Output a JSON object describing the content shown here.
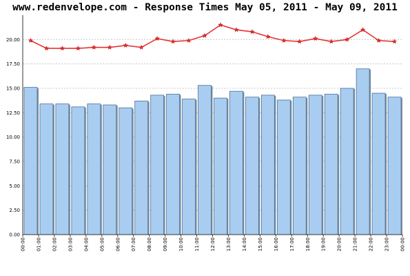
{
  "chart_data": {
    "type": "bar",
    "title": "www.redenvelope.com - Response Times May 05, 2011 - May 09, 2011",
    "xlabel": "",
    "ylabel": "",
    "ylim": [
      0,
      22.5
    ],
    "y_ticks": [
      "0.00",
      "2.50",
      "5.00",
      "7.50",
      "10.00",
      "12.50",
      "15.00",
      "17.50",
      "20.00"
    ],
    "categories": [
      "00:00",
      "01:00",
      "02:00",
      "03:00",
      "04:00",
      "05:00",
      "06:00",
      "07:00",
      "08:00",
      "09:00",
      "10:00",
      "11:00",
      "12:00",
      "13:00",
      "14:00",
      "15:00",
      "16:00",
      "17:00",
      "18:00",
      "19:00",
      "20:00",
      "21:00",
      "22:00",
      "23:00"
    ],
    "x_tick_labels": [
      "00:00",
      "01:00",
      "02:00",
      "03:00",
      "04:00",
      "05:00",
      "06:00",
      "07:00",
      "08:00",
      "09:00",
      "10:00",
      "11:00",
      "12:00",
      "13:00",
      "14:00",
      "15:00",
      "16:00",
      "17:00",
      "18:00",
      "19:00",
      "20:00",
      "21:00",
      "22:00",
      "23:00",
      "00:00"
    ],
    "grid": true,
    "series": [
      {
        "type": "bar",
        "color": "#a8cdf0",
        "values": [
          15.1,
          13.4,
          13.4,
          13.1,
          13.4,
          13.3,
          13.0,
          13.7,
          14.3,
          14.4,
          13.9,
          15.3,
          14.0,
          14.7,
          14.1,
          14.3,
          13.8,
          14.1,
          14.3,
          14.4,
          15.0,
          17.0,
          14.5,
          14.1
        ]
      },
      {
        "type": "line",
        "color": "#e83232",
        "values": [
          19.9,
          19.1,
          19.1,
          19.1,
          19.2,
          19.2,
          19.4,
          19.2,
          20.1,
          19.8,
          19.9,
          20.4,
          21.5,
          21.0,
          20.8,
          20.3,
          19.9,
          19.8,
          20.1,
          19.8,
          20.0,
          21.0,
          19.9,
          19.8
        ]
      }
    ]
  }
}
